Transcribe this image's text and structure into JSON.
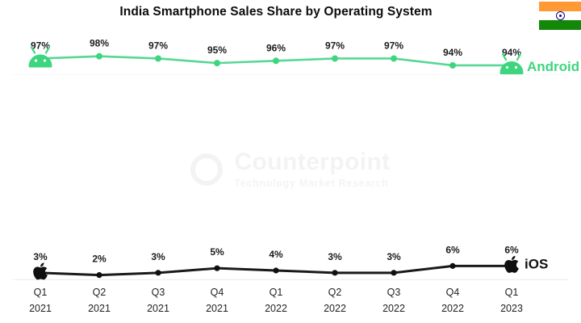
{
  "header": {
    "title": "India Smartphone Sales Share by Operating System"
  },
  "flag": {
    "name": "india-flag",
    "colors": {
      "saffron": "#FF9933",
      "white": "#FFFFFF",
      "green": "#138808",
      "chakra": "#06038D"
    }
  },
  "watermark": {
    "brand": "Counterpoint",
    "tagline": "Technology Market Research"
  },
  "chart_data": {
    "type": "line",
    "title": "India Smartphone Sales Share by Operating System",
    "categories": [
      [
        "Q1",
        "2021"
      ],
      [
        "Q2",
        "2021"
      ],
      [
        "Q3",
        "2021"
      ],
      [
        "Q4",
        "2021"
      ],
      [
        "Q1",
        "2022"
      ],
      [
        "Q2",
        "2022"
      ],
      [
        "Q3",
        "2022"
      ],
      [
        "Q4",
        "2022"
      ],
      [
        "Q1",
        "2023"
      ]
    ],
    "series": [
      {
        "name": "Android",
        "icon": "android",
        "color": "#3dd67f",
        "line_color": "#58d794",
        "values": [
          97,
          98,
          97,
          95,
          96,
          97,
          97,
          94,
          94
        ],
        "value_suffix": "%"
      },
      {
        "name": "iOS",
        "icon": "apple",
        "color": "#101010",
        "line_color": "#1a1a1a",
        "values": [
          3,
          2,
          3,
          5,
          4,
          3,
          3,
          6,
          6
        ],
        "value_suffix": "%"
      }
    ],
    "xlabel": "",
    "ylabel": "",
    "ylim": [
      0,
      100
    ],
    "grid": "minimal",
    "gridlines_pct": [
      90,
      0
    ],
    "data_labels": "above-points",
    "legend_position": "line-end"
  }
}
